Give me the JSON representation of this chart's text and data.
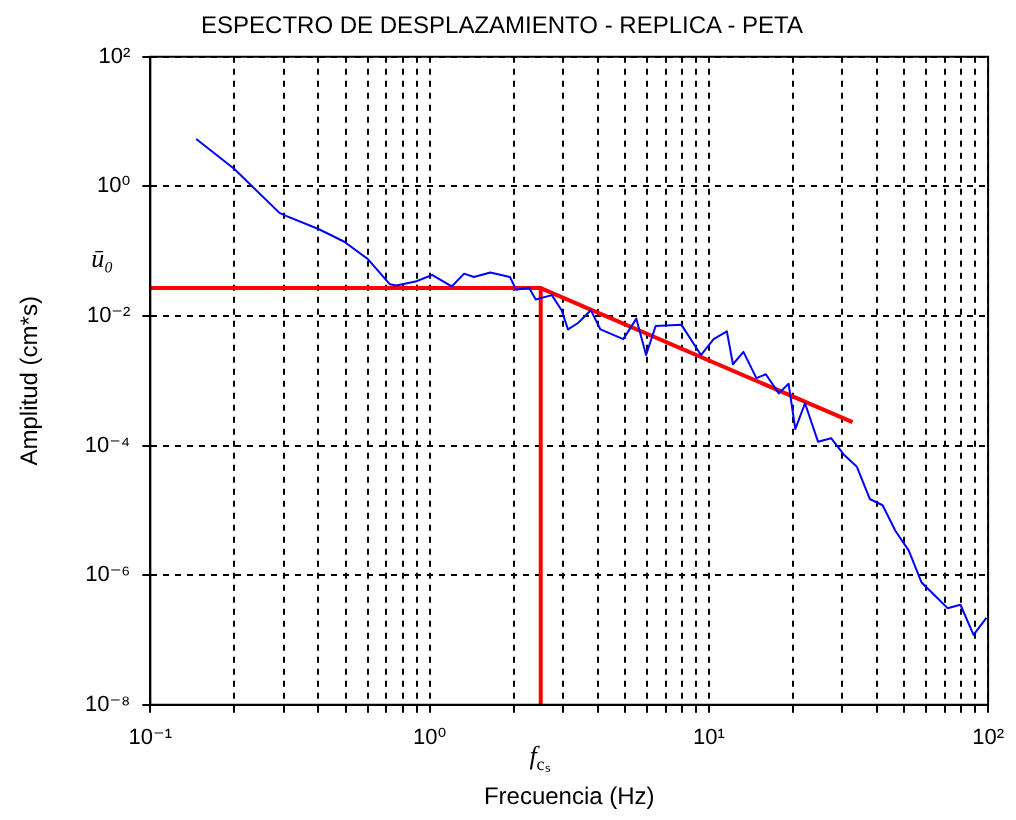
{
  "chart_data": {
    "type": "line",
    "title": "ESPECTRO DE DESPLAZAMIENTO - REPLICA - PETA",
    "xlabel": "Frecuencia (Hz)",
    "ylabel": "Amplitud (cm*s)",
    "log": "xy",
    "grid": true,
    "legend": false,
    "xlim": [
      0.1,
      100
    ],
    "ylim": [
      1e-08,
      100
    ],
    "xticks": [
      {
        "value": 0.1,
        "label": "10⁻¹"
      },
      {
        "value": 0.2,
        "label": null
      },
      {
        "value": 0.3,
        "label": null
      },
      {
        "value": 0.4,
        "label": null
      },
      {
        "value": 0.5,
        "label": null
      },
      {
        "value": 0.6,
        "label": null
      },
      {
        "value": 0.7,
        "label": null
      },
      {
        "value": 0.8,
        "label": null
      },
      {
        "value": 0.9,
        "label": null
      },
      {
        "value": 1,
        "label": "10⁰"
      },
      {
        "value": 2,
        "label": null
      },
      {
        "value": 3,
        "label": null
      },
      {
        "value": 4,
        "label": null
      },
      {
        "value": 5,
        "label": null
      },
      {
        "value": 6,
        "label": null
      },
      {
        "value": 7,
        "label": null
      },
      {
        "value": 8,
        "label": null
      },
      {
        "value": 9,
        "label": null
      },
      {
        "value": 10,
        "label": "10¹"
      },
      {
        "value": 20,
        "label": null
      },
      {
        "value": 30,
        "label": null
      },
      {
        "value": 40,
        "label": null
      },
      {
        "value": 50,
        "label": null
      },
      {
        "value": 60,
        "label": null
      },
      {
        "value": 70,
        "label": null
      },
      {
        "value": 80,
        "label": null
      },
      {
        "value": 90,
        "label": null
      },
      {
        "value": 100,
        "label": "10²"
      }
    ],
    "yticks": [
      {
        "value": 1e-08,
        "label": "10⁻⁸"
      },
      {
        "value": 1e-06,
        "label": "10⁻⁶"
      },
      {
        "value": 0.0001,
        "label": "10⁻⁴"
      },
      {
        "value": 0.01,
        "label": "10⁻²"
      },
      {
        "value": 1,
        "label": "10⁰"
      },
      {
        "value": 100,
        "label": "10²"
      }
    ],
    "annotations": [
      "ū₀",
      "f$_{cₛ}$"
    ],
    "series": [
      {
        "type": "line",
        "color": "#0000ff",
        "x": [
          0.146,
          0.2,
          0.29,
          0.306,
          0.4,
          0.495,
          0.6,
          0.72,
          0.76,
          0.89,
          1.02,
          1.2,
          1.33,
          1.44,
          1.65,
          1.94,
          2.04,
          2.27,
          2.4,
          2.74,
          2.97,
          3.13,
          3.4,
          3.78,
          4.09,
          4.94,
          5.5,
          5.96,
          6.45,
          7.98,
          9.37,
          10.4,
          11.6,
          12.2,
          13.3,
          14.8,
          16,
          17.8,
          19.3,
          20.4,
          22.1,
          24.6,
          27.4,
          30.4,
          33.9,
          37.7,
          41.9,
          46.6,
          52,
          57.8,
          64.3,
          71.6,
          79.6,
          88.7,
          98.6
        ],
        "values": [
          5.4,
          1.85,
          0.39,
          0.35,
          0.22,
          0.14,
          0.076,
          0.031,
          0.0295,
          0.034,
          0.043,
          0.0286,
          0.045,
          0.04,
          0.047,
          0.04,
          0.0255,
          0.0273,
          0.018,
          0.021,
          0.0123,
          0.0062,
          0.0078,
          0.0123,
          0.0062,
          0.0044,
          0.0091,
          0.0025,
          0.007,
          0.0073,
          0.0025,
          0.0044,
          0.0058,
          0.0018,
          0.0028,
          0.0011,
          0.00126,
          0.00064,
          0.0009,
          0.00018,
          0.00045,
          0.000115,
          0.00013,
          7.3e-05,
          4.7e-05,
          1.5e-05,
          1.2e-05,
          4.8e-06,
          2.4e-06,
          7.7e-07,
          4.9e-07,
          3.1e-07,
          3.5e-07,
          1.2e-07,
          2.2e-07
        ]
      },
      {
        "type": "line",
        "color": "#ff0000",
        "x": [
          0.1,
          2.5,
          2.5
        ],
        "values": [
          0.027,
          0.027,
          1e-08
        ]
      },
      {
        "type": "line",
        "color": "#ff0000",
        "x": [
          2.5,
          32.7
        ],
        "values": [
          0.027,
          0.00023
        ]
      }
    ]
  }
}
